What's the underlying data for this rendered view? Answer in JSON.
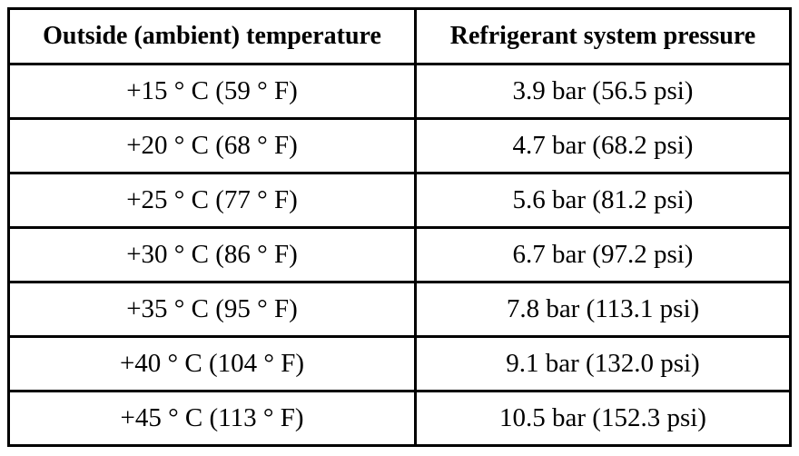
{
  "table": {
    "headers": [
      "Outside (ambient) temperature",
      "Refrigerant system pressure"
    ],
    "rows": [
      [
        "+15 ° C (59 ° F)",
        "3.9 bar (56.5 psi)"
      ],
      [
        "+20 ° C (68 ° F)",
        "4.7 bar (68.2 psi)"
      ],
      [
        "+25 ° C (77 ° F)",
        "5.6 bar (81.2 psi)"
      ],
      [
        "+30 ° C (86 ° F)",
        "6.7 bar (97.2 psi)"
      ],
      [
        "+35 ° C (95 ° F)",
        "7.8 bar (113.1 psi)"
      ],
      [
        "+40 ° C (104 ° F)",
        "9.1 bar (132.0 psi)"
      ],
      [
        "+45 ° C (113 ° F)",
        "10.5 bar (152.3 psi)"
      ]
    ]
  }
}
